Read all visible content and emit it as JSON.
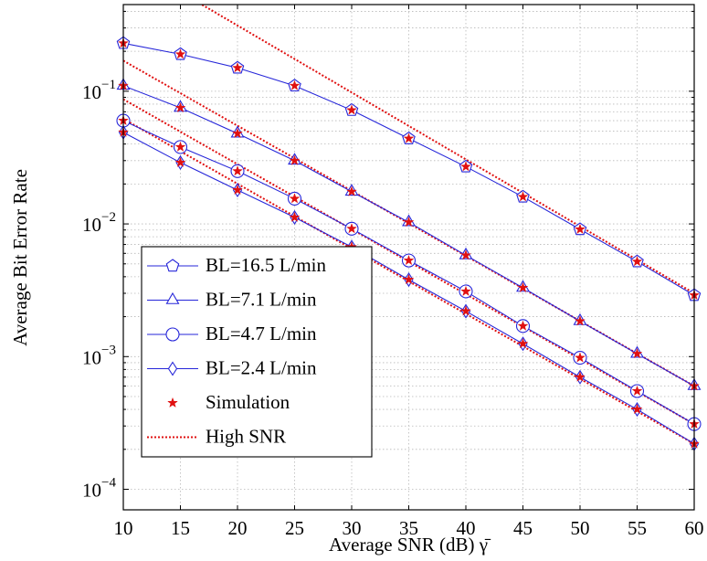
{
  "chart_data": {
    "type": "line",
    "x_label": "Average SNR (dB) γ̄",
    "y_label": "Average Bit Error Rate",
    "x": [
      10,
      15,
      20,
      25,
      30,
      35,
      40,
      45,
      50,
      55,
      60
    ],
    "xlim": [
      10,
      60
    ],
    "xticks": [
      10,
      15,
      20,
      25,
      30,
      35,
      40,
      45,
      50,
      55,
      60
    ],
    "ylim": [
      7e-05,
      0.45
    ],
    "log_y": true,
    "grid": true,
    "legend": "lower left",
    "yticks": [
      {
        "value": 0.0001,
        "base": "10",
        "exponent": "−4"
      },
      {
        "value": 0.001,
        "base": "10",
        "exponent": "−3"
      },
      {
        "value": 0.01,
        "base": "10",
        "exponent": "−2"
      },
      {
        "value": 0.1,
        "base": "10",
        "exponent": "−1"
      }
    ],
    "yminorticks": [
      0.0002,
      0.0003,
      0.0004,
      0.0005,
      0.0006,
      0.0007,
      0.0008,
      0.0009,
      0.002,
      0.003,
      0.004,
      0.005,
      0.006,
      0.007,
      0.008,
      0.009,
      0.02,
      0.03,
      0.04,
      0.05,
      0.06,
      0.07,
      0.08,
      0.09,
      0.2,
      0.3,
      0.4
    ],
    "series": [
      {
        "name": "BL=16.5 L/min",
        "color": "#2626d9",
        "marker": "pentagon",
        "values": [
          0.23,
          0.19,
          0.15,
          0.11,
          0.072,
          0.044,
          0.027,
          0.016,
          0.0091,
          0.0052,
          0.0029
        ]
      },
      {
        "name": "BL=7.1 L/min",
        "color": "#2626d9",
        "marker": "triangle",
        "values": [
          0.11,
          0.075,
          0.048,
          0.03,
          0.0175,
          0.0103,
          0.0058,
          0.0033,
          0.00185,
          0.00105,
          0.0006
        ]
      },
      {
        "name": "BL=4.7 L/min",
        "color": "#2626d9",
        "marker": "circle",
        "values": [
          0.06,
          0.038,
          0.025,
          0.0155,
          0.0092,
          0.0053,
          0.0031,
          0.0017,
          0.00098,
          0.00055,
          0.00031
        ]
      },
      {
        "name": "BL=2.4 L/min",
        "color": "#2626d9",
        "marker": "diamond",
        "values": [
          0.049,
          0.029,
          0.018,
          0.0112,
          0.0067,
          0.0038,
          0.0022,
          0.00125,
          0.0007,
          0.0004,
          0.00022
        ]
      }
    ],
    "simulation": {
      "name": "Simulation",
      "color": "#e01010",
      "values": [
        [
          0.23,
          0.19,
          0.15,
          0.11,
          0.072,
          0.044,
          0.027,
          0.016,
          0.0091,
          0.0052,
          0.0029
        ],
        [
          0.11,
          0.075,
          0.048,
          0.03,
          0.0175,
          0.0103,
          0.0058,
          0.0033,
          0.00185,
          0.00105,
          0.0006
        ],
        [
          0.06,
          0.038,
          0.025,
          0.0155,
          0.0092,
          0.0053,
          0.0031,
          0.0017,
          0.00098,
          0.00055,
          0.00031
        ],
        [
          0.049,
          0.029,
          0.018,
          0.0112,
          0.0067,
          0.0038,
          0.0022,
          0.00125,
          0.0007,
          0.0004,
          0.00022
        ]
      ]
    },
    "high_snr": {
      "name": "High SNR",
      "color": "#e01010",
      "x": [
        10,
        60
      ],
      "lines": [
        [
          1.0,
          0.003
        ],
        [
          0.17,
          0.0006
        ],
        [
          0.087,
          0.00031
        ],
        [
          0.062,
          0.00022
        ]
      ]
    }
  }
}
